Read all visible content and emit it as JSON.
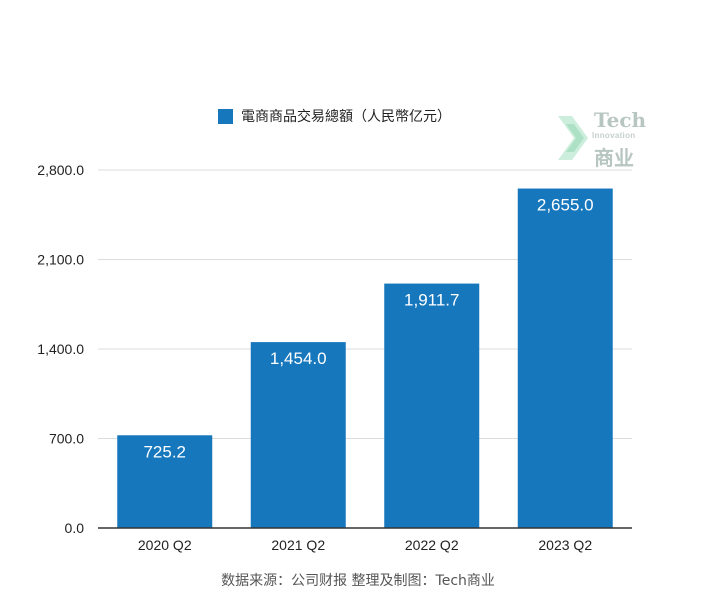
{
  "colors": {
    "bar": "#1677BD",
    "grid": "#dddddd",
    "axis": "#333333",
    "bar_label": "#ffffff"
  },
  "legend": {
    "label": "電商商品交易總額（人民幣亿元）"
  },
  "source": "数据来源：公司财报 整理及制图：Tech商业",
  "logo": {
    "word_en": "Tech",
    "word_mid": "Innovation",
    "word_cn": "商业",
    "icon": "chevron-mark-icon"
  },
  "chart_data": {
    "type": "bar",
    "categories": [
      "2020 Q2",
      "2021 Q2",
      "2022 Q2",
      "2023 Q2"
    ],
    "series": [
      {
        "name": "電商商品交易總額（人民幣亿元）",
        "values": [
          725.2,
          1454.0,
          1911.7,
          2655.0
        ]
      }
    ],
    "value_labels": [
      "725.2",
      "1,454.0",
      "1,911.7",
      "2,655.0"
    ],
    "yticks": [
      0,
      700,
      1400,
      2100,
      2800
    ],
    "ytick_labels": [
      "0.0",
      "700.0",
      "1,400.0",
      "2,100.0",
      "2,800.0"
    ],
    "ylim": [
      0,
      2800
    ],
    "grid": true,
    "legend_position": "top"
  }
}
